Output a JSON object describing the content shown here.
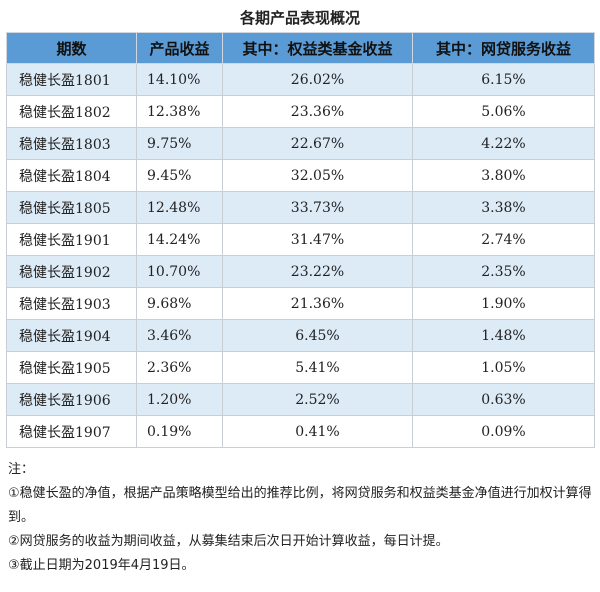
{
  "title": "各期产品表现概况",
  "table": {
    "headers": [
      "期数",
      "产品收益",
      "其中：权益类基金收益",
      "其中：网贷服务收益"
    ],
    "rows": [
      [
        "稳健长盈1801",
        "14.10%",
        "26.02%",
        "6.15%"
      ],
      [
        "稳健长盈1802",
        "12.38%",
        "23.36%",
        "5.06%"
      ],
      [
        "稳健长盈1803",
        "9.75%",
        "22.67%",
        "4.22%"
      ],
      [
        "稳健长盈1804",
        "9.45%",
        "32.05%",
        "3.80%"
      ],
      [
        "稳健长盈1805",
        "12.48%",
        "33.73%",
        "3.38%"
      ],
      [
        "稳健长盈1901",
        "14.24%",
        "31.47%",
        "2.74%"
      ],
      [
        "稳健长盈1902",
        "10.70%",
        "23.22%",
        "2.35%"
      ],
      [
        "稳健长盈1903",
        "9.68%",
        "21.36%",
        "1.90%"
      ],
      [
        "稳健长盈1904",
        "3.46%",
        "6.45%",
        "1.48%"
      ],
      [
        "稳健长盈1905",
        "2.36%",
        "5.41%",
        "1.05%"
      ],
      [
        "稳健长盈1906",
        "1.20%",
        "2.52%",
        "0.63%"
      ],
      [
        "稳健长盈1907",
        "0.19%",
        "0.41%",
        "0.09%"
      ]
    ]
  },
  "notes": {
    "heading": "注：",
    "items": [
      "①稳健长盈的净值，根据产品策略模型给出的推荐比例，将网贷服务和权益类基金净值进行加权计算得到。",
      "②网贷服务的收益为期间收益，从募集结束后次日开始计算收益，每日计提。",
      "③截止日期为2019年4月19日。"
    ]
  },
  "colors": {
    "header_bg": "#5b9bd5",
    "stripe_bg": "#ddebf7"
  }
}
